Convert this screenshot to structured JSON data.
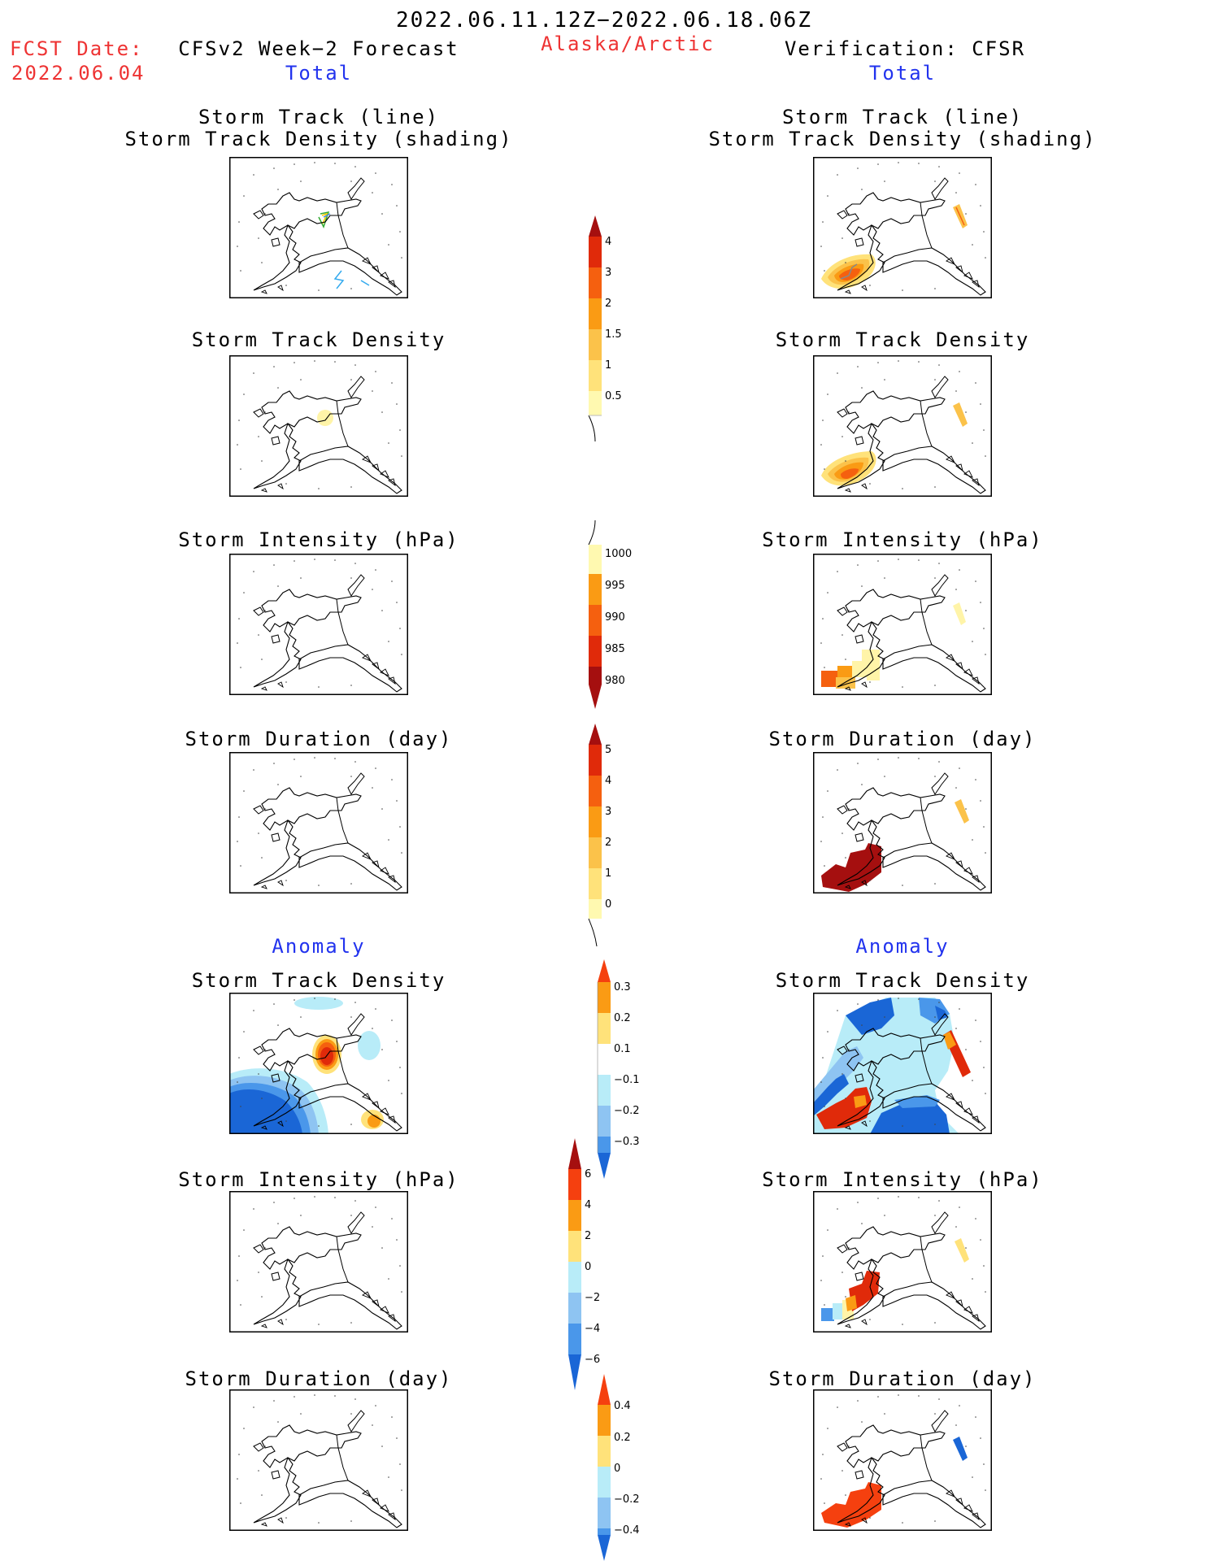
{
  "header": {
    "period": "2022.06.11.12Z−2022.06.18.06Z",
    "fcst_label": "FCST Date:",
    "fcst_date": "2022.06.04",
    "region": "Alaska/Arctic",
    "left_title": "CFSv2 Week−2 Forecast",
    "right_title": "Verification: CFSR",
    "left_subtitle": "Total",
    "right_subtitle": "Total",
    "anomaly_left": "Anomaly",
    "anomaly_right": "Anomaly"
  },
  "panel_titles": {
    "track_line": "Storm Track (line)",
    "track_shading": "Storm Track Density (shading)",
    "density": "Storm Track Density",
    "intensity": "Storm Intensity (hPa)",
    "duration": "Storm Duration (day)"
  },
  "colorbars": {
    "density_total": [
      "4",
      "3",
      "2",
      "1.5",
      "1",
      "0.5"
    ],
    "intensity_total": [
      "1000",
      "995",
      "990",
      "985",
      "980"
    ],
    "duration_total": [
      "5",
      "4",
      "3",
      "2",
      "1",
      "0"
    ],
    "density_anom": [
      "0.3",
      "0.2",
      "0.1",
      "−0.1",
      "−0.2",
      "−0.3"
    ],
    "intensity_anom": [
      "6",
      "4",
      "2",
      "0",
      "−2",
      "−4",
      "−6"
    ],
    "duration_anom": [
      "0.4",
      "0.2",
      "0",
      "−0.2",
      "−0.4"
    ]
  },
  "colors": {
    "title_red": "#ee3333",
    "subtitle_blue": "#2233ee",
    "yellow_light": "#fff9b0",
    "yellow": "#ffe27a",
    "gold": "#fbc24a",
    "orange": "#fa9b14",
    "orange_red": "#f5600f",
    "red": "#e02a0a",
    "dark_red": "#a50f0f",
    "cyan_light": "#b8ecf8",
    "blue_light": "#8ec4f2",
    "blue": "#4a97ea",
    "blue_dark": "#1a66d6"
  }
}
